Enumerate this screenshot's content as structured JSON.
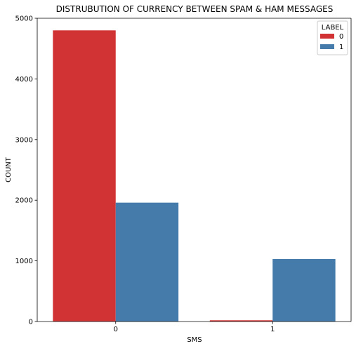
{
  "chart_data": {
    "type": "bar",
    "title": "DISTRUBUTION OF CURRENCY BETWEEN SPAM & HAM MESSAGES",
    "xlabel": "SMS",
    "ylabel": "COUNT",
    "categories": [
      "0",
      "1"
    ],
    "series": [
      {
        "name": "0",
        "color": "#d13233",
        "values": [
          4800,
          20
        ]
      },
      {
        "name": "1",
        "color": "#447bab",
        "values": [
          1960,
          1030
        ]
      }
    ],
    "ylim": [
      0,
      5000
    ],
    "yticks": [
      0,
      1000,
      2000,
      3000,
      4000,
      5000
    ],
    "grid": false,
    "legend": {
      "title": "LABEL",
      "placement": "top-right"
    }
  }
}
